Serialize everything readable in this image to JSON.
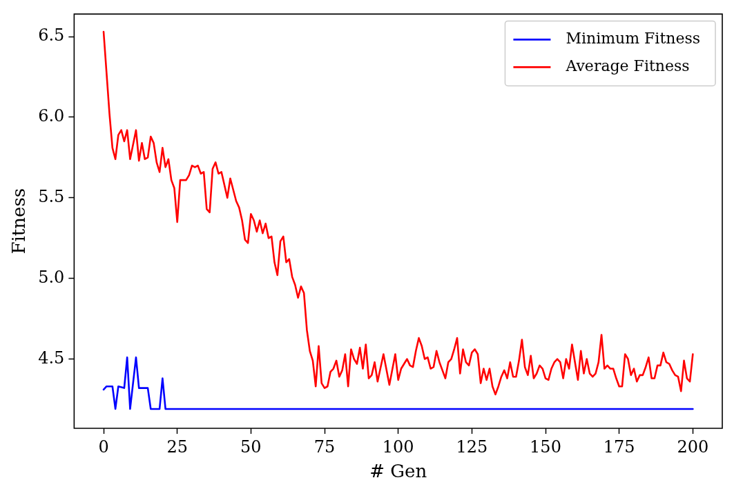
{
  "chart_data": {
    "type": "line",
    "xlabel": "# Gen",
    "ylabel": "Fitness",
    "xlim": [
      -10,
      210
    ],
    "ylim": [
      4.07,
      6.64
    ],
    "xticks": [
      0,
      25,
      50,
      75,
      100,
      125,
      150,
      175,
      200
    ],
    "yticks": [
      4.5,
      {
        "value": 5,
        "label": "5.0"
      },
      5.5,
      {
        "value": 6,
        "label": "6.0"
      },
      6.5
    ],
    "grid": false,
    "legend": "top right",
    "marker": "none",
    "line_style": "solid",
    "series": [
      {
        "name": "Minimum Fitness",
        "color": "#0000ff",
        "x": [
          0,
          1,
          3,
          4,
          5,
          7,
          8,
          9,
          11,
          12,
          15,
          16,
          19,
          20,
          21,
          200
        ],
        "values": [
          4.31,
          4.33,
          4.33,
          4.19,
          4.33,
          4.32,
          4.51,
          4.19,
          4.51,
          4.32,
          4.32,
          4.19,
          4.19,
          4.38,
          4.19,
          4.19
        ]
      },
      {
        "name": "Average Fitness",
        "color": "#ff0000",
        "x": [
          0,
          2,
          3,
          4,
          5,
          6,
          7,
          8,
          9,
          11,
          12,
          13,
          14,
          15,
          16,
          17,
          18,
          19,
          20,
          21,
          22,
          23,
          24,
          25,
          26,
          28,
          29,
          30,
          31,
          32,
          33,
          34,
          35,
          36,
          37,
          38,
          39,
          40,
          42,
          43,
          45,
          46,
          47,
          48,
          49,
          50,
          51,
          52,
          53,
          54,
          55,
          56,
          57,
          58,
          59,
          60,
          61,
          62,
          63,
          64,
          65,
          66,
          67,
          68,
          69,
          70,
          71,
          72,
          73,
          74,
          75,
          76,
          77,
          78,
          79,
          80,
          81,
          82,
          83,
          84,
          85,
          86,
          87,
          88,
          89,
          90,
          91,
          92,
          93,
          95,
          97,
          99,
          100,
          101,
          102,
          103,
          104,
          105,
          106,
          107,
          108,
          109,
          110,
          111,
          112,
          113,
          114,
          115,
          116,
          117,
          118,
          119,
          120,
          121,
          122,
          123,
          124,
          125,
          126,
          127,
          128,
          129,
          130,
          131,
          132,
          133,
          134,
          135,
          136,
          137,
          138,
          139,
          140,
          141,
          142,
          143,
          144,
          145,
          146,
          147,
          148,
          149,
          150,
          151,
          152,
          153,
          154,
          155,
          156,
          157,
          158,
          159,
          160,
          161,
          162,
          163,
          164,
          165,
          166,
          167,
          168,
          169,
          170,
          171,
          172,
          173,
          174,
          175,
          176,
          177,
          178,
          179,
          180,
          181,
          182,
          183,
          184,
          185,
          186,
          187,
          188,
          189,
          190,
          191,
          192,
          193,
          194,
          195,
          196,
          197,
          198,
          199,
          200
        ],
        "values": [
          6.53,
          6.02,
          5.81,
          5.74,
          5.89,
          5.92,
          5.85,
          5.92,
          5.74,
          5.92,
          5.73,
          5.84,
          5.74,
          5.75,
          5.88,
          5.84,
          5.72,
          5.66,
          5.81,
          5.69,
          5.74,
          5.61,
          5.56,
          5.35,
          5.61,
          5.61,
          5.64,
          5.7,
          5.69,
          5.7,
          5.65,
          5.66,
          5.43,
          5.41,
          5.68,
          5.72,
          5.65,
          5.66,
          5.5,
          5.62,
          5.48,
          5.44,
          5.36,
          5.24,
          5.22,
          5.4,
          5.36,
          5.29,
          5.36,
          5.28,
          5.34,
          5.25,
          5.26,
          5.1,
          5.02,
          5.23,
          5.26,
          5.1,
          5.12,
          5.01,
          4.96,
          4.88,
          4.95,
          4.91,
          4.68,
          4.55,
          4.49,
          4.33,
          4.58,
          4.35,
          4.32,
          4.33,
          4.42,
          4.44,
          4.49,
          4.39,
          4.43,
          4.53,
          4.33,
          4.56,
          4.5,
          4.47,
          4.57,
          4.44,
          4.59,
          4.38,
          4.4,
          4.48,
          4.36,
          4.53,
          4.34,
          4.53,
          4.37,
          4.44,
          4.47,
          4.5,
          4.46,
          4.45,
          4.55,
          4.63,
          4.58,
          4.5,
          4.51,
          4.44,
          4.45,
          4.55,
          4.48,
          4.43,
          4.38,
          4.48,
          4.5,
          4.56,
          4.63,
          4.41,
          4.56,
          4.48,
          4.46,
          4.54,
          4.56,
          4.53,
          4.35,
          4.44,
          4.37,
          4.44,
          4.33,
          4.28,
          4.33,
          4.39,
          4.43,
          4.38,
          4.48,
          4.39,
          4.39,
          4.49,
          4.62,
          4.45,
          4.4,
          4.52,
          4.38,
          4.41,
          4.46,
          4.44,
          4.38,
          4.37,
          4.44,
          4.48,
          4.5,
          4.48,
          4.38,
          4.5,
          4.44,
          4.59,
          4.48,
          4.37,
          4.55,
          4.41,
          4.5,
          4.41,
          4.39,
          4.41,
          4.48,
          4.65,
          4.44,
          4.46,
          4.44,
          4.44,
          4.38,
          4.33,
          4.33,
          4.53,
          4.5,
          4.4,
          4.44,
          4.36,
          4.4,
          4.4,
          4.45,
          4.51,
          4.38,
          4.38,
          4.46,
          4.46,
          4.54,
          4.48,
          4.47,
          4.43,
          4.4,
          4.39,
          4.3,
          4.49,
          4.38,
          4.36,
          4.53
        ]
      }
    ]
  }
}
